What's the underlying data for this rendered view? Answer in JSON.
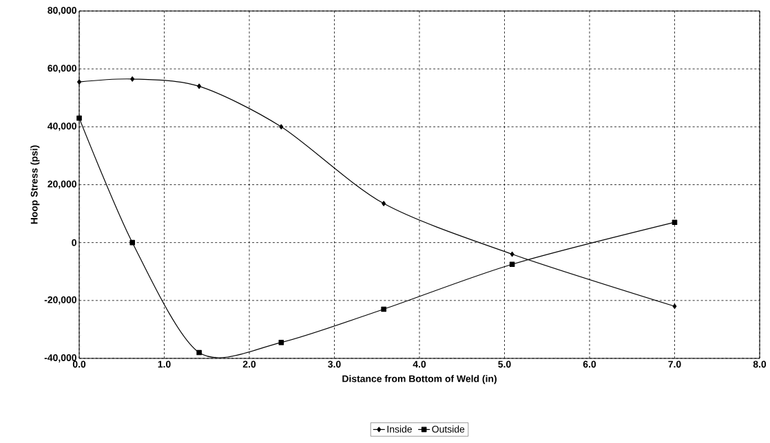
{
  "chart_data": {
    "type": "line",
    "xlabel": "Distance from Bottom of Weld (in)",
    "ylabel": "Hoop Stress (psi)",
    "x": [
      0,
      0.625,
      1.41,
      2.375,
      3.58,
      5.09,
      7.0
    ],
    "series": [
      {
        "name": "Inside",
        "color": "#000000",
        "marker": "diamond",
        "values": [
          55500,
          56500,
          54000,
          40000,
          13500,
          -4000,
          -22000
        ]
      },
      {
        "name": "Outside",
        "color": "#000000",
        "marker": "square",
        "values": [
          43000,
          0,
          -38000,
          -34500,
          -23000,
          -7500,
          7000
        ]
      }
    ],
    "xlim": [
      0,
      8
    ],
    "ylim": [
      -40000,
      80000
    ],
    "xticks": [
      {
        "value": 0,
        "label": "0.0"
      },
      {
        "value": 1,
        "label": "1.0"
      },
      {
        "value": 2,
        "label": "2.0"
      },
      {
        "value": 3,
        "label": "3.0"
      },
      {
        "value": 4,
        "label": "4.0"
      },
      {
        "value": 5,
        "label": "5.0"
      },
      {
        "value": 6,
        "label": "6.0"
      },
      {
        "value": 7,
        "label": "7.0"
      },
      {
        "value": 8,
        "label": "8.0"
      }
    ],
    "yticks": [
      {
        "value": -40000,
        "label": "-40,000"
      },
      {
        "value": -20000,
        "label": "-20,000"
      },
      {
        "value": 0,
        "label": "0"
      },
      {
        "value": 20000,
        "label": "20,000"
      },
      {
        "value": 40000,
        "label": "40,000"
      },
      {
        "value": 60000,
        "label": "60,000"
      },
      {
        "value": 80000,
        "label": "80,000"
      }
    ],
    "grid": true,
    "legend": "bottom"
  }
}
